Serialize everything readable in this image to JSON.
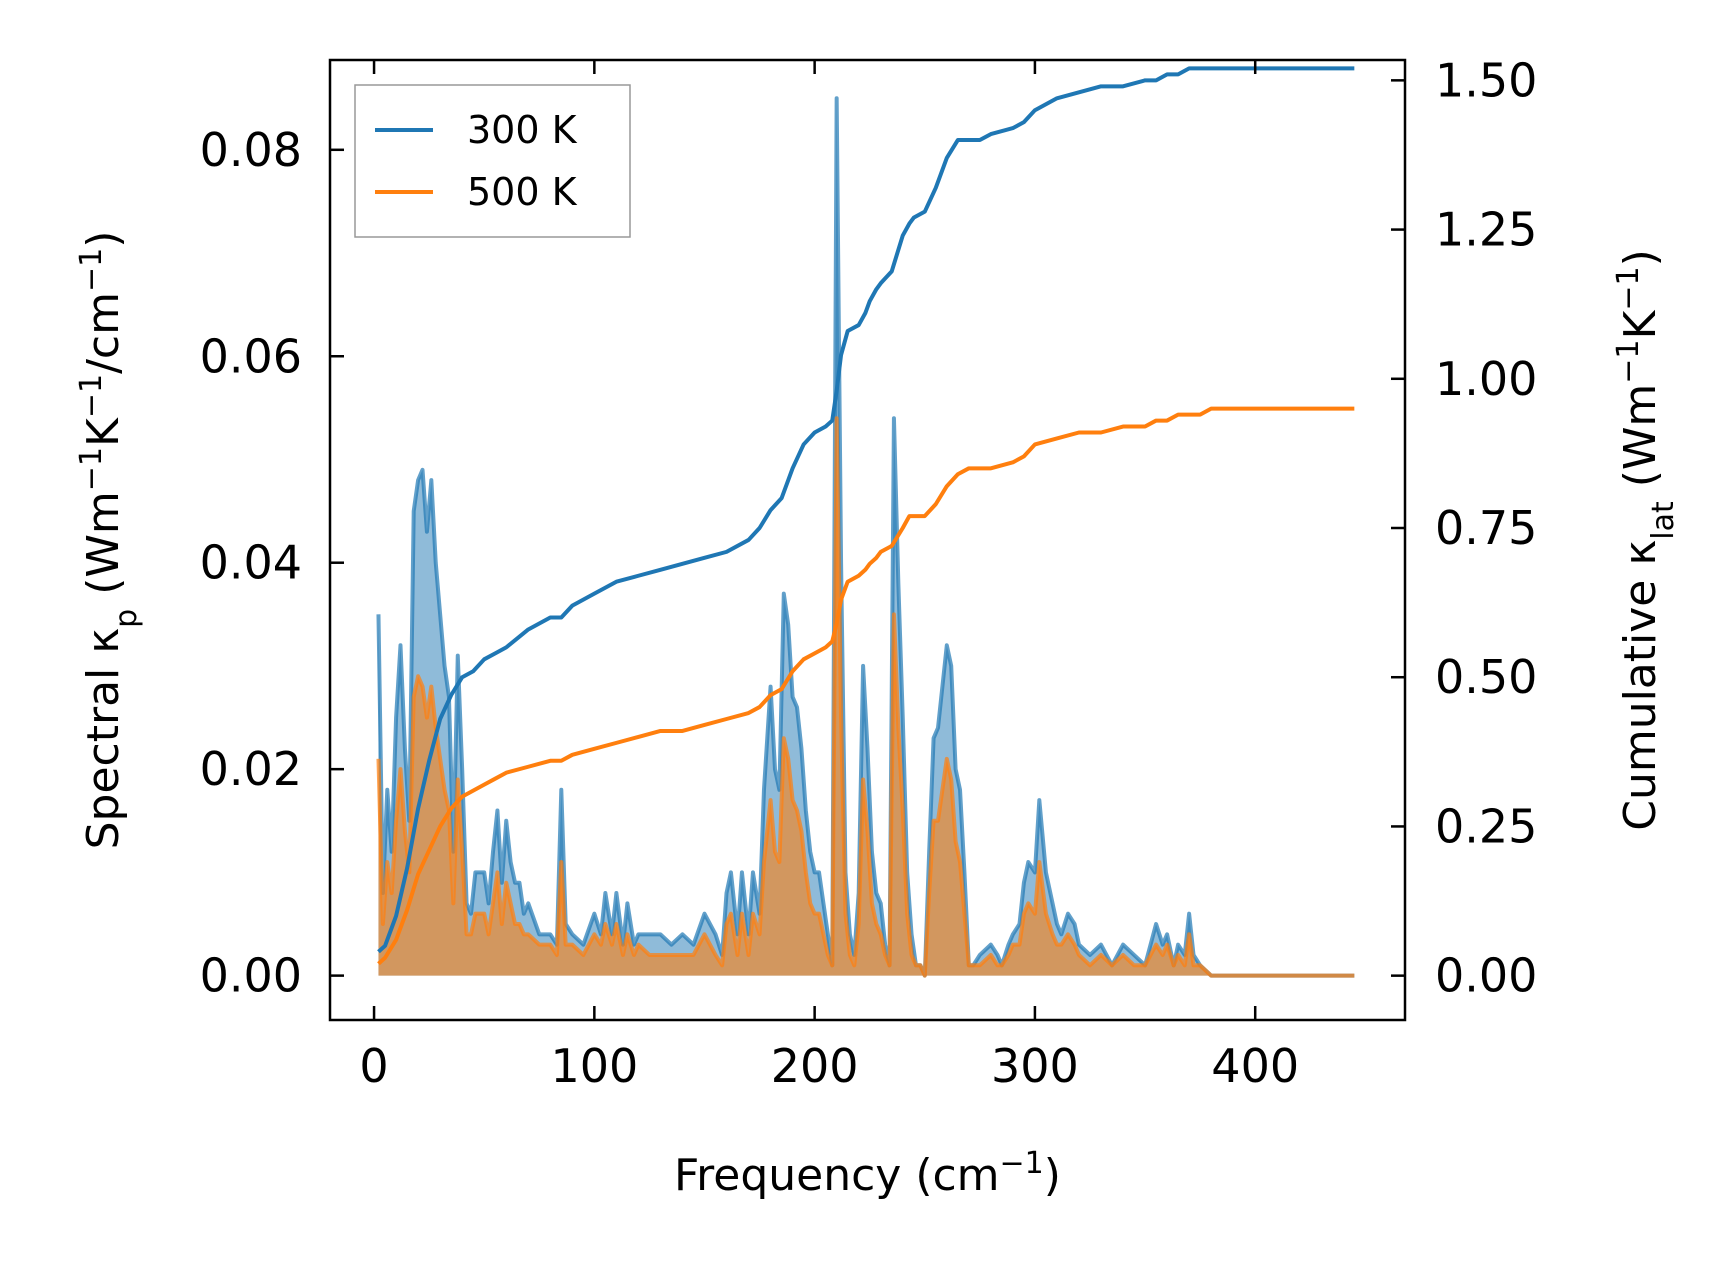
{
  "chart_data": {
    "type": "line",
    "xlabel": "Frequency (cm",
    "xlabel_sup": "−1",
    "xlabel_end": ")",
    "ylabel_left_parts": [
      "Spectral κ",
      "p",
      " (Wm",
      "−1",
      "K",
      "−1",
      "/cm",
      "−1",
      ")"
    ],
    "ylabel_right_parts": [
      "Cumulative κ",
      "lat",
      " (Wm",
      "−1",
      "K",
      "−1",
      ")"
    ],
    "xlim": [
      -20,
      468
    ],
    "ylim_left": [
      -0.0043,
      0.0887
    ],
    "ylim_right": [
      -0.0743,
      1.5341
    ],
    "x_ticks": [
      0,
      100,
      200,
      300,
      400
    ],
    "x_tick_labels": [
      "0",
      "100",
      "200",
      "300",
      "400"
    ],
    "y_left_ticks": [
      0.0,
      0.02,
      0.04,
      0.06,
      0.08
    ],
    "y_left_tick_labels": [
      "0.00",
      "0.02",
      "0.04",
      "0.06",
      "0.08"
    ],
    "y_right_ticks": [
      0.0,
      0.25,
      0.5,
      0.75,
      1.0,
      1.25,
      1.5
    ],
    "y_right_tick_labels": [
      "0.00",
      "0.25",
      "0.50",
      "0.75",
      "1.00",
      "1.25",
      "1.50"
    ],
    "legend_position": "upper-left",
    "colors": {
      "300 K": "#1f77b4",
      "500 K": "#ff7f0e"
    },
    "spectral_series": [
      {
        "name": "300 K",
        "axis": "left",
        "x": [
          2,
          4,
          6,
          8,
          10,
          12,
          14,
          16,
          18,
          20,
          22,
          24,
          26,
          28,
          30,
          32,
          34,
          36,
          38,
          40,
          42,
          44,
          46,
          48,
          50,
          52,
          54,
          56,
          58,
          60,
          62,
          64,
          66,
          68,
          70,
          75,
          80,
          83,
          85,
          87,
          90,
          95,
          100,
          103,
          105,
          108,
          110,
          113,
          115,
          118,
          120,
          125,
          130,
          135,
          140,
          145,
          150,
          155,
          158,
          160,
          162,
          165,
          167,
          170,
          172,
          175,
          177,
          180,
          182,
          184,
          186,
          188,
          190,
          192,
          194,
          196,
          198,
          200,
          202,
          204,
          206,
          208,
          210,
          212,
          214,
          216,
          218,
          220,
          222,
          224,
          226,
          228,
          230,
          232,
          234,
          236,
          238,
          240,
          242,
          244,
          246,
          248,
          250,
          252,
          254,
          256,
          258,
          260,
          262,
          264,
          266,
          268,
          270,
          272,
          275,
          280,
          283,
          285,
          288,
          290,
          293,
          295,
          297,
          300,
          302,
          305,
          308,
          310,
          312,
          315,
          318,
          320,
          325,
          330,
          335,
          340,
          345,
          350,
          355,
          358,
          360,
          363,
          365,
          368,
          370,
          372,
          375,
          380,
          385,
          388,
          390,
          400,
          420,
          445
        ],
        "y": [
          0.035,
          0.008,
          0.018,
          0.012,
          0.025,
          0.032,
          0.022,
          0.015,
          0.045,
          0.048,
          0.049,
          0.043,
          0.048,
          0.04,
          0.035,
          0.03,
          0.027,
          0.012,
          0.031,
          0.02,
          0.007,
          0.006,
          0.01,
          0.01,
          0.01,
          0.007,
          0.012,
          0.016,
          0.009,
          0.015,
          0.011,
          0.009,
          0.009,
          0.006,
          0.007,
          0.004,
          0.004,
          0.003,
          0.018,
          0.005,
          0.004,
          0.003,
          0.006,
          0.004,
          0.008,
          0.004,
          0.008,
          0.003,
          0.007,
          0.003,
          0.004,
          0.004,
          0.004,
          0.003,
          0.004,
          0.003,
          0.006,
          0.004,
          0.002,
          0.008,
          0.01,
          0.004,
          0.01,
          0.004,
          0.01,
          0.006,
          0.018,
          0.028,
          0.02,
          0.018,
          0.037,
          0.034,
          0.027,
          0.026,
          0.022,
          0.016,
          0.012,
          0.01,
          0.01,
          0.007,
          0.004,
          0.001,
          0.085,
          0.04,
          0.01,
          0.004,
          0.002,
          0.008,
          0.03,
          0.022,
          0.012,
          0.008,
          0.007,
          0.003,
          0.001,
          0.054,
          0.038,
          0.025,
          0.01,
          0.004,
          0.001,
          0.001,
          0.0,
          0.012,
          0.023,
          0.024,
          0.028,
          0.032,
          0.03,
          0.02,
          0.018,
          0.01,
          0.001,
          0.001,
          0.002,
          0.003,
          0.002,
          0.001,
          0.003,
          0.004,
          0.005,
          0.009,
          0.011,
          0.01,
          0.017,
          0.01,
          0.007,
          0.005,
          0.004,
          0.006,
          0.005,
          0.003,
          0.002,
          0.003,
          0.001,
          0.003,
          0.002,
          0.001,
          0.005,
          0.003,
          0.004,
          0.001,
          0.003,
          0.002,
          0.006,
          0.002,
          0.001,
          0.0,
          0.0,
          0.0,
          0.0,
          0.0,
          0.0,
          0.0
        ]
      },
      {
        "name": "500 K",
        "axis": "left",
        "x": [
          2,
          4,
          6,
          8,
          10,
          12,
          14,
          16,
          18,
          20,
          22,
          24,
          26,
          28,
          30,
          32,
          34,
          36,
          38,
          40,
          42,
          44,
          46,
          48,
          50,
          52,
          54,
          56,
          58,
          60,
          62,
          64,
          66,
          68,
          70,
          75,
          80,
          83,
          85,
          87,
          90,
          95,
          100,
          103,
          105,
          108,
          110,
          113,
          115,
          118,
          120,
          125,
          130,
          135,
          140,
          145,
          150,
          155,
          158,
          160,
          162,
          165,
          167,
          170,
          172,
          175,
          177,
          180,
          182,
          184,
          186,
          188,
          190,
          192,
          194,
          196,
          198,
          200,
          202,
          204,
          206,
          208,
          210,
          212,
          214,
          216,
          218,
          220,
          222,
          224,
          226,
          228,
          230,
          232,
          234,
          236,
          238,
          240,
          242,
          244,
          246,
          248,
          250,
          252,
          254,
          256,
          258,
          260,
          262,
          264,
          266,
          268,
          270,
          272,
          275,
          280,
          283,
          285,
          288,
          290,
          293,
          295,
          297,
          300,
          302,
          305,
          308,
          310,
          312,
          315,
          318,
          320,
          325,
          330,
          335,
          340,
          345,
          350,
          355,
          358,
          360,
          363,
          365,
          368,
          370,
          372,
          375,
          380,
          385,
          388,
          390,
          400,
          420,
          445
        ],
        "y": [
          0.021,
          0.005,
          0.011,
          0.008,
          0.015,
          0.02,
          0.014,
          0.01,
          0.027,
          0.029,
          0.028,
          0.025,
          0.028,
          0.024,
          0.021,
          0.018,
          0.016,
          0.007,
          0.019,
          0.012,
          0.004,
          0.004,
          0.006,
          0.006,
          0.006,
          0.004,
          0.007,
          0.01,
          0.005,
          0.009,
          0.007,
          0.005,
          0.005,
          0.004,
          0.004,
          0.003,
          0.003,
          0.002,
          0.011,
          0.003,
          0.003,
          0.002,
          0.004,
          0.003,
          0.005,
          0.003,
          0.005,
          0.002,
          0.004,
          0.002,
          0.003,
          0.002,
          0.002,
          0.002,
          0.002,
          0.002,
          0.004,
          0.002,
          0.001,
          0.005,
          0.006,
          0.002,
          0.006,
          0.002,
          0.006,
          0.004,
          0.011,
          0.017,
          0.012,
          0.011,
          0.023,
          0.021,
          0.017,
          0.016,
          0.014,
          0.01,
          0.007,
          0.006,
          0.006,
          0.004,
          0.002,
          0.001,
          0.054,
          0.025,
          0.006,
          0.002,
          0.001,
          0.005,
          0.019,
          0.014,
          0.007,
          0.005,
          0.004,
          0.002,
          0.001,
          0.035,
          0.024,
          0.016,
          0.006,
          0.002,
          0.001,
          0.001,
          0.0,
          0.008,
          0.015,
          0.015,
          0.018,
          0.021,
          0.019,
          0.013,
          0.011,
          0.006,
          0.001,
          0.001,
          0.001,
          0.002,
          0.001,
          0.001,
          0.002,
          0.003,
          0.003,
          0.006,
          0.007,
          0.006,
          0.011,
          0.006,
          0.004,
          0.003,
          0.003,
          0.004,
          0.003,
          0.002,
          0.001,
          0.002,
          0.001,
          0.002,
          0.001,
          0.001,
          0.003,
          0.002,
          0.003,
          0.001,
          0.002,
          0.001,
          0.004,
          0.001,
          0.001,
          0.0,
          0.0,
          0.0,
          0.0,
          0.0,
          0.0,
          0.0
        ]
      }
    ],
    "cumulative_series": [
      {
        "name": "300 K",
        "axis": "right",
        "x": [
          2,
          5,
          10,
          15,
          20,
          25,
          30,
          35,
          40,
          45,
          50,
          55,
          60,
          70,
          80,
          85,
          90,
          100,
          110,
          120,
          130,
          140,
          150,
          160,
          170,
          175,
          180,
          185,
          190,
          195,
          200,
          205,
          208,
          210,
          212,
          215,
          220,
          223,
          225,
          228,
          230,
          235,
          240,
          243,
          245,
          250,
          255,
          260,
          265,
          270,
          275,
          280,
          290,
          295,
          300,
          310,
          320,
          330,
          340,
          350,
          355,
          360,
          365,
          370,
          375,
          380,
          390,
          400,
          420,
          445
        ],
        "y": [
          0.04,
          0.05,
          0.1,
          0.18,
          0.28,
          0.36,
          0.43,
          0.47,
          0.5,
          0.51,
          0.53,
          0.54,
          0.55,
          0.58,
          0.6,
          0.6,
          0.62,
          0.64,
          0.66,
          0.67,
          0.68,
          0.69,
          0.7,
          0.71,
          0.73,
          0.75,
          0.78,
          0.8,
          0.85,
          0.89,
          0.91,
          0.92,
          0.93,
          0.98,
          1.04,
          1.08,
          1.09,
          1.11,
          1.13,
          1.15,
          1.16,
          1.18,
          1.24,
          1.26,
          1.27,
          1.28,
          1.32,
          1.37,
          1.4,
          1.4,
          1.4,
          1.41,
          1.42,
          1.43,
          1.45,
          1.47,
          1.48,
          1.49,
          1.49,
          1.5,
          1.5,
          1.51,
          1.51,
          1.52,
          1.52,
          1.52,
          1.52,
          1.52,
          1.52,
          1.52
        ]
      },
      {
        "name": "500 K",
        "axis": "right",
        "x": [
          2,
          5,
          10,
          15,
          20,
          25,
          30,
          35,
          40,
          45,
          50,
          55,
          60,
          70,
          80,
          85,
          90,
          100,
          110,
          120,
          130,
          140,
          150,
          160,
          170,
          175,
          180,
          185,
          190,
          195,
          200,
          205,
          208,
          210,
          212,
          215,
          220,
          223,
          225,
          228,
          230,
          235,
          240,
          243,
          245,
          250,
          255,
          260,
          265,
          270,
          275,
          280,
          290,
          295,
          300,
          310,
          320,
          330,
          340,
          350,
          355,
          360,
          365,
          370,
          375,
          380,
          390,
          400,
          420,
          445
        ],
        "y": [
          0.02,
          0.03,
          0.06,
          0.11,
          0.17,
          0.21,
          0.25,
          0.28,
          0.3,
          0.31,
          0.32,
          0.33,
          0.34,
          0.35,
          0.36,
          0.36,
          0.37,
          0.38,
          0.39,
          0.4,
          0.41,
          0.41,
          0.42,
          0.43,
          0.44,
          0.45,
          0.47,
          0.48,
          0.51,
          0.53,
          0.54,
          0.55,
          0.56,
          0.59,
          0.63,
          0.66,
          0.67,
          0.68,
          0.69,
          0.7,
          0.71,
          0.72,
          0.75,
          0.77,
          0.77,
          0.77,
          0.79,
          0.82,
          0.84,
          0.85,
          0.85,
          0.85,
          0.86,
          0.87,
          0.89,
          0.9,
          0.91,
          0.91,
          0.92,
          0.92,
          0.93,
          0.93,
          0.94,
          0.94,
          0.94,
          0.95,
          0.95,
          0.95,
          0.95,
          0.95
        ]
      }
    ]
  }
}
